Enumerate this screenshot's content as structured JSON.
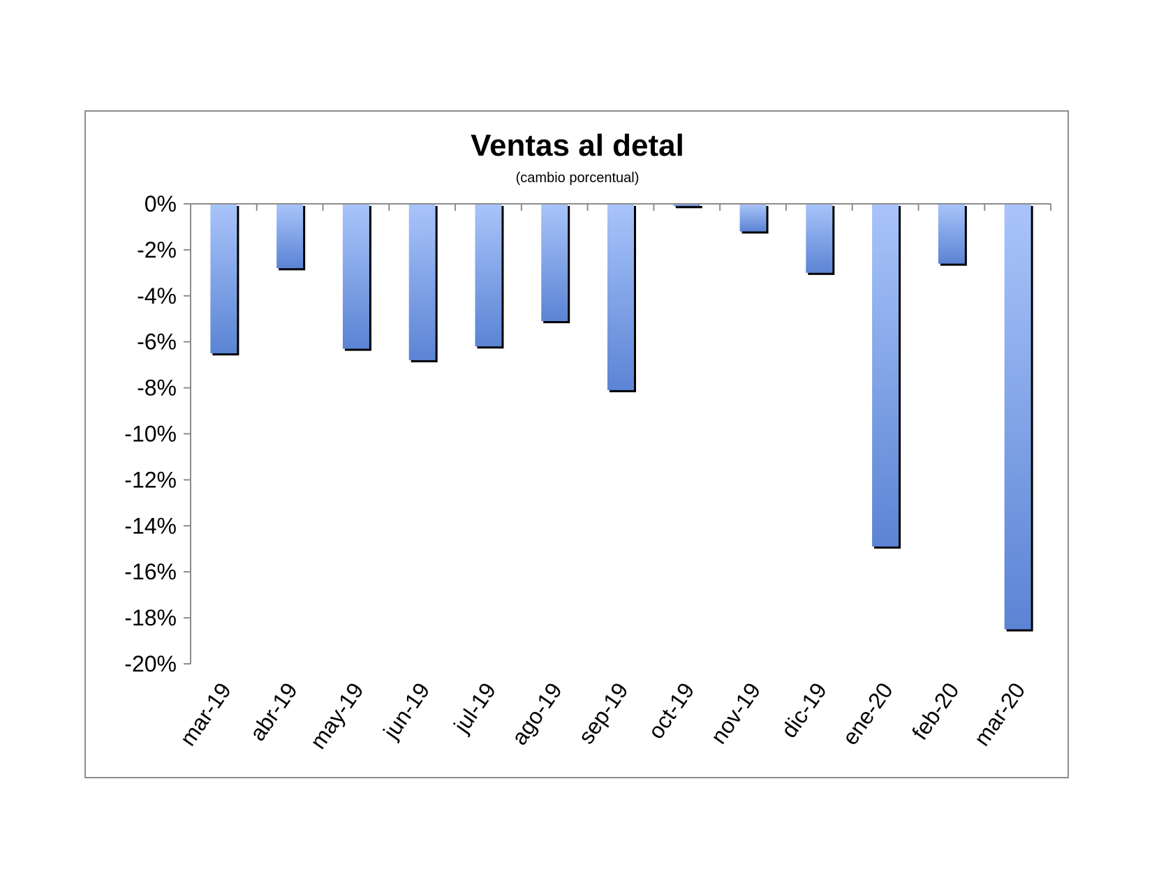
{
  "chart_data": {
    "type": "bar",
    "title": "Ventas al detal",
    "subtitle": "(cambio porcentual)",
    "xlabel": "",
    "ylabel": "",
    "categories": [
      "mar-19",
      "abr-19",
      "may-19",
      "jun-19",
      "jul-19",
      "ago-19",
      "sep-19",
      "oct-19",
      "nov-19",
      "dic-19",
      "ene-20",
      "feb-20",
      "mar-20"
    ],
    "series": [
      {
        "values": [
          -6.5,
          -2.8,
          -6.3,
          -6.8,
          -6.2,
          -5.1,
          -8.1,
          -0.1,
          -1.2,
          -3.0,
          -14.9,
          -2.6,
          -18.5
        ]
      }
    ],
    "ylim": [
      -20,
      0
    ],
    "yticks": [
      0,
      -2,
      -4,
      -6,
      -8,
      -10,
      -12,
      -14,
      -16,
      -18,
      -20
    ],
    "ytick_labels": [
      "0%",
      "-2%",
      "-4%",
      "-6%",
      "-8%",
      "-10%",
      "-12%",
      "-14%",
      "-16%",
      "-18%",
      "-20%"
    ],
    "grid": false,
    "legend": "none",
    "colors": {
      "bar_top": "#a9c4fa",
      "bar_bottom": "#5b84d4",
      "shadow": "#000000",
      "axis": "#8c8c8c",
      "frame": "#8c8c8c"
    }
  }
}
